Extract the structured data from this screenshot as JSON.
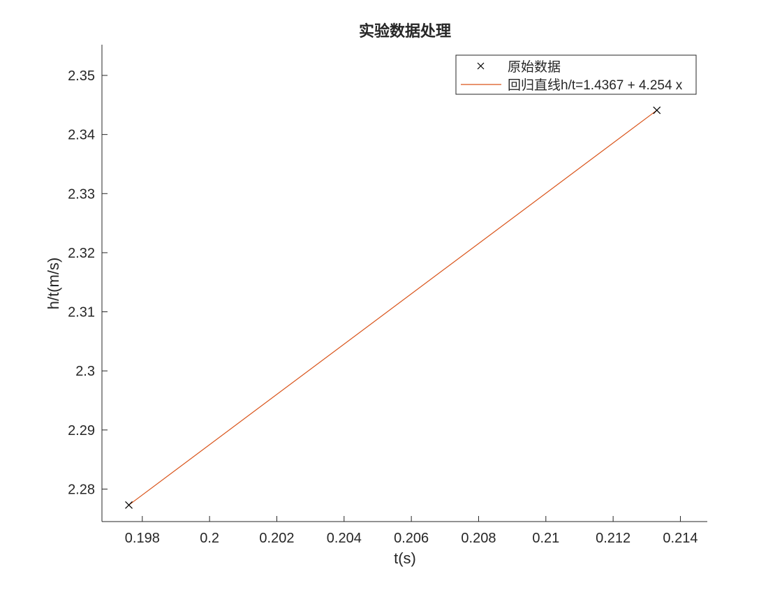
{
  "chart_data": {
    "type": "scatter",
    "title": "实验数据处理",
    "xlabel": "t(s)",
    "ylabel": "h/t(m/s)",
    "xlim": [
      0.1968,
      0.2148
    ],
    "ylim": [
      2.2745,
      2.3552
    ],
    "xticks": [
      0.198,
      0.2,
      0.202,
      0.204,
      0.206,
      0.208,
      0.21,
      0.212,
      0.214
    ],
    "xtick_labels": [
      "0.198",
      "0.2",
      "0.202",
      "0.204",
      "0.206",
      "0.208",
      "0.21",
      "0.212",
      "0.214"
    ],
    "yticks": [
      2.28,
      2.29,
      2.3,
      2.31,
      2.32,
      2.33,
      2.34,
      2.35
    ],
    "ytick_labels": [
      "2.28",
      "2.29",
      "2.3",
      "2.31",
      "2.32",
      "2.33",
      "2.34",
      "2.35"
    ],
    "grid": false,
    "legend_position": "top-right",
    "series": [
      {
        "name": "原始数据",
        "kind": "marker",
        "marker": "x",
        "color": "#000000",
        "x": [
          0.1976,
          0.2133
        ],
        "y": [
          2.2773,
          2.3441
        ]
      },
      {
        "name": "回归直线h/t=1.4367 + 4.254 x",
        "kind": "line",
        "color": "#d95319",
        "x": [
          0.1976,
          0.2133
        ],
        "y": [
          2.2773,
          2.3441
        ]
      }
    ]
  }
}
